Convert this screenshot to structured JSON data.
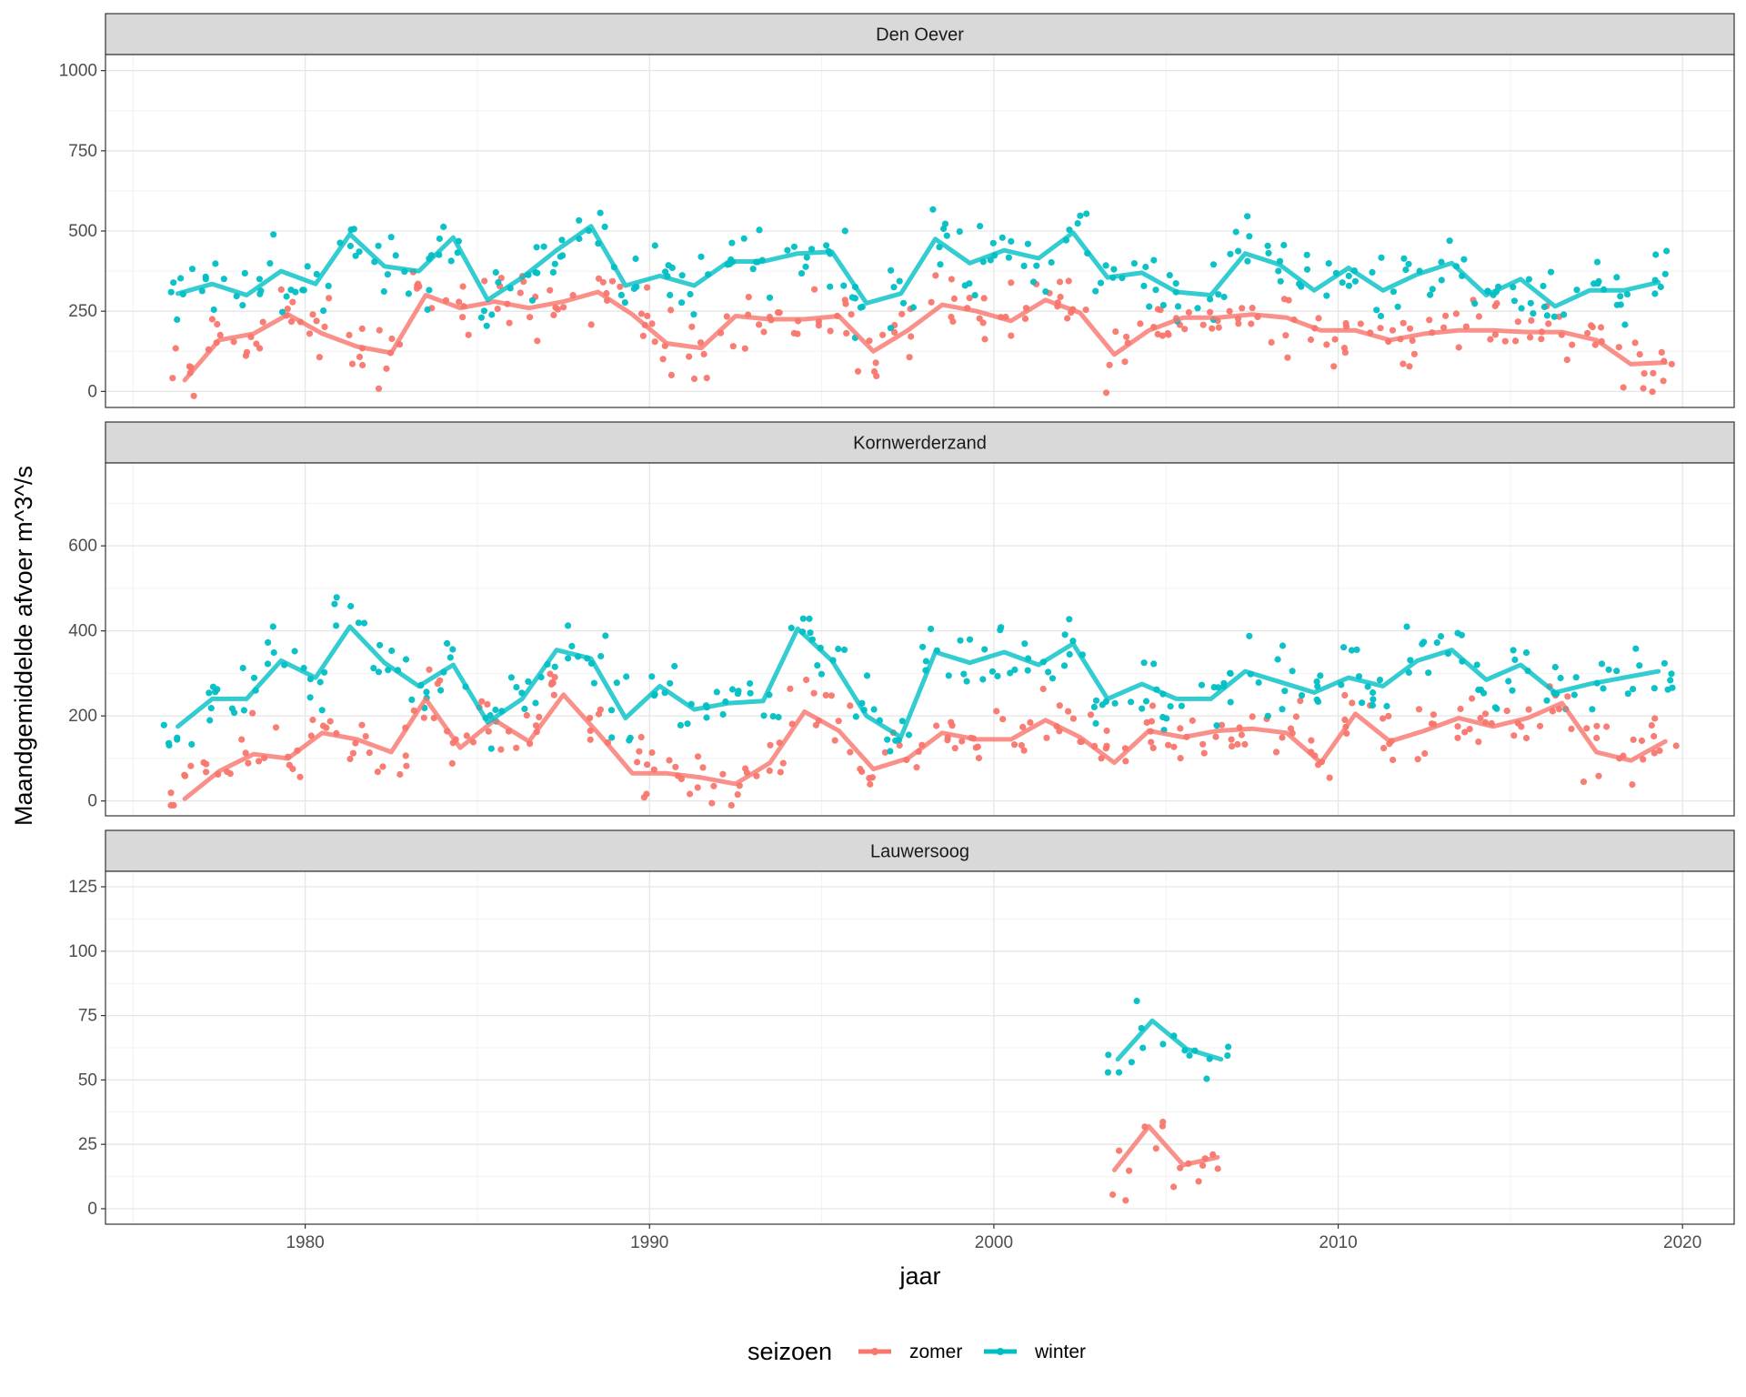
{
  "chart_data": {
    "type": "line",
    "xlabel": "jaar",
    "ylabel": "Maandgemiddelde afvoer m^3^/s",
    "x_ticks": [
      1980,
      1990,
      2000,
      2010,
      2020
    ],
    "xlim": [
      1974.2,
      2021.5
    ],
    "legend": {
      "title": "seizoen",
      "position": "bottom",
      "entries": [
        "zomer",
        "winter"
      ]
    },
    "colors": {
      "zomer": "#F8766D",
      "winter": "#00BFC4"
    },
    "grid": true,
    "panels": [
      {
        "title": "Den Oever",
        "ylim": [
          -50,
          1050
        ],
        "y_ticks": [
          0,
          250,
          500,
          750,
          1000
        ],
        "series": [
          {
            "name": "zomer",
            "x": [
              1976.5,
              1977.5,
              1978.5,
              1979.5,
              1980.5,
              1981.5,
              1982.5,
              1983.5,
              1984.5,
              1985.5,
              1986.5,
              1987.5,
              1988.5,
              1989.5,
              1990.5,
              1991.5,
              1992.5,
              1993.5,
              1994.5,
              1995.5,
              1996.5,
              1997.5,
              1998.5,
              1999.5,
              2000.5,
              2001.5,
              2002.5,
              2003.5,
              2004.5,
              2005.5,
              2006.5,
              2007.5,
              2008.5,
              2009.5,
              2010.5,
              2011.5,
              2012.5,
              2013.5,
              2014.5,
              2015.5,
              2016.5,
              2017.5,
              2018.5,
              2019.5
            ],
            "values": [
              35,
              160,
              180,
              240,
              180,
              140,
              120,
              300,
              260,
              280,
              260,
              280,
              310,
              240,
              150,
              135,
              235,
              225,
              225,
              235,
              125,
              190,
              270,
              250,
              220,
              285,
              245,
              115,
              190,
              230,
              230,
              240,
              230,
              190,
              190,
              160,
              180,
              190,
              190,
              185,
              185,
              160,
              85,
              90
            ]
          },
          {
            "name": "winter",
            "x": [
              1976.3,
              1977.3,
              1978.3,
              1979.3,
              1980.3,
              1981.3,
              1982.3,
              1983.3,
              1984.3,
              1985.3,
              1986.3,
              1987.3,
              1988.3,
              1989.3,
              1990.3,
              1991.3,
              1992.3,
              1993.3,
              1994.3,
              1995.3,
              1996.3,
              1997.3,
              1998.3,
              1999.3,
              2000.3,
              2001.3,
              2002.3,
              2003.3,
              2004.3,
              2005.3,
              2006.3,
              2007.3,
              2008.3,
              2009.3,
              2010.3,
              2011.3,
              2012.3,
              2013.3,
              2014.3,
              2015.3,
              2016.3,
              2017.3,
              2018.3,
              2019.3
            ],
            "values": [
              305,
              335,
              300,
              375,
              335,
              490,
              390,
              375,
              480,
              285,
              355,
              440,
              515,
              330,
              360,
              330,
              405,
              405,
              430,
              435,
              275,
              305,
              475,
              400,
              440,
              415,
              495,
              355,
              370,
              310,
              300,
              430,
              395,
              315,
              385,
              315,
              365,
              400,
              300,
              350,
              265,
              315,
              315,
              340
            ]
          }
        ]
      },
      {
        "title": "Kornwerderzand",
        "ylim": [
          -35,
          795
        ],
        "y_ticks": [
          0,
          200,
          400,
          600
        ],
        "series": [
          {
            "name": "zomer",
            "x": [
              1976.5,
              1977.5,
              1978.5,
              1979.5,
              1980.5,
              1981.5,
              1982.5,
              1983.5,
              1984.5,
              1985.5,
              1986.5,
              1987.5,
              1988.5,
              1989.5,
              1990.5,
              1991.5,
              1992.5,
              1993.5,
              1994.5,
              1995.5,
              1996.5,
              1997.5,
              1998.5,
              1999.5,
              2000.5,
              2001.5,
              2002.5,
              2003.5,
              2004.5,
              2005.5,
              2006.5,
              2007.5,
              2008.5,
              2009.5,
              2010.5,
              2011.5,
              2012.5,
              2013.5,
              2014.5,
              2015.5,
              2016.5,
              2017.5,
              2018.5,
              2019.5
            ],
            "values": [
              5,
              70,
              110,
              100,
              160,
              145,
              115,
              240,
              125,
              190,
              140,
              250,
              160,
              65,
              65,
              55,
              40,
              90,
              210,
              165,
              75,
              100,
              160,
              145,
              145,
              190,
              150,
              90,
              165,
              150,
              165,
              170,
              160,
              90,
              205,
              140,
              165,
              195,
              175,
              195,
              230,
              115,
              95,
              140
            ]
          },
          {
            "name": "winter",
            "x": [
              1976.3,
              1977.3,
              1978.3,
              1979.3,
              1980.3,
              1981.3,
              1982.3,
              1983.3,
              1984.3,
              1985.3,
              1986.3,
              1987.3,
              1988.3,
              1989.3,
              1990.3,
              1991.3,
              1992.3,
              1993.3,
              1994.3,
              1995.3,
              1996.3,
              1997.3,
              1998.3,
              1999.3,
              2000.3,
              2001.3,
              2002.3,
              2003.3,
              2004.3,
              2005.3,
              2006.3,
              2007.3,
              2008.3,
              2009.3,
              2010.3,
              2011.3,
              2012.3,
              2013.3,
              2014.3,
              2015.3,
              2016.3,
              2017.3,
              2018.3,
              2019.3
            ],
            "values": [
              175,
              240,
              240,
              330,
              290,
              410,
              325,
              270,
              320,
              185,
              240,
              355,
              335,
              195,
              270,
              215,
              230,
              235,
              405,
              330,
              200,
              150,
              350,
              325,
              350,
              320,
              370,
              240,
              275,
              240,
              240,
              305,
              280,
              255,
              290,
              270,
              330,
              355,
              285,
              320,
              255,
              275,
              290,
              305
            ]
          }
        ]
      },
      {
        "title": "Lauwersoog",
        "ylim": [
          -6,
          131
        ],
        "y_ticks": [
          0,
          25,
          50,
          75,
          100,
          125
        ],
        "series": [
          {
            "name": "zomer",
            "x": [
              2003.5,
              2004.5,
              2005.5,
              2006.5
            ],
            "values": [
              15,
              32,
              17,
              20
            ]
          },
          {
            "name": "winter",
            "x": [
              2003.6,
              2004.6,
              2005.6,
              2006.6
            ],
            "values": [
              58,
              73,
              62,
              58
            ]
          }
        ]
      }
    ]
  }
}
